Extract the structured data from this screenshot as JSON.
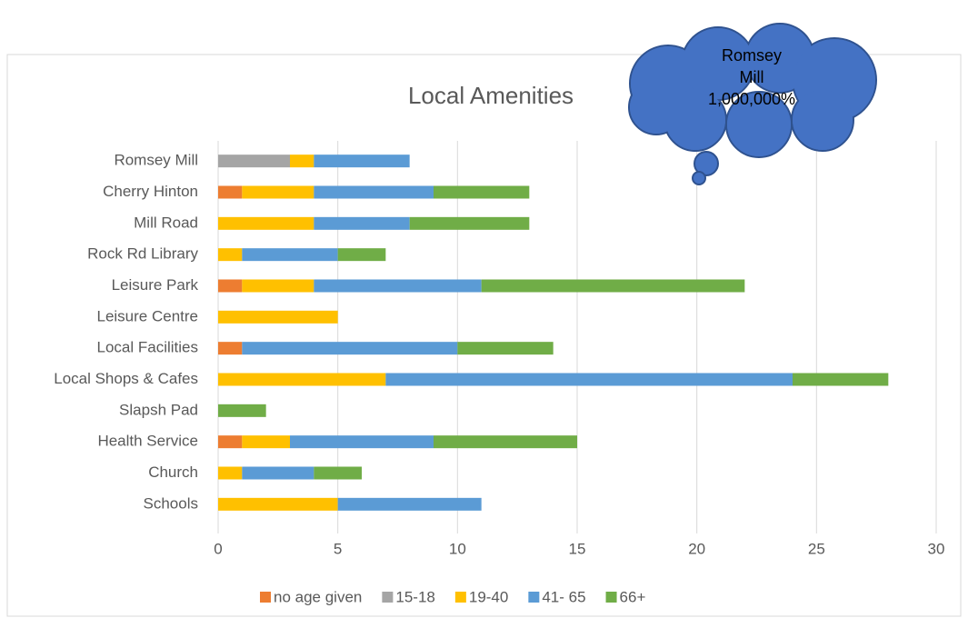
{
  "chart_data": {
    "type": "stacked-bar-horizontal",
    "title": "Local Amenities",
    "categories": [
      "Romsey Mill",
      "Cherry Hinton",
      "Mill Road",
      "Rock Rd Library",
      "Leisure Park",
      "Leisure Centre",
      "Local Facilities",
      "Local Shops & Cafes",
      "Slapsh Pad",
      "Health Service",
      "Church",
      "Schools"
    ],
    "series": [
      {
        "name": "no age given",
        "color": "#ED7D31",
        "values": [
          0,
          1,
          0,
          0,
          1,
          0,
          1,
          0,
          0,
          1,
          0,
          0
        ]
      },
      {
        "name": "15-18",
        "color": "#A5A5A5",
        "values": [
          3,
          0,
          0,
          0,
          0,
          0,
          0,
          0,
          0,
          0,
          0,
          0
        ]
      },
      {
        "name": "19-40",
        "color": "#FFC000",
        "values": [
          1,
          3,
          4,
          1,
          3,
          5,
          0,
          7,
          0,
          2,
          1,
          5
        ]
      },
      {
        "name": "41- 65",
        "color": "#5B9BD5",
        "values": [
          4,
          5,
          4,
          4,
          7,
          0,
          9,
          17,
          0,
          6,
          3,
          6
        ]
      },
      {
        "name": "66+",
        "color": "#70AD47",
        "values": [
          0,
          4,
          5,
          2,
          11,
          0,
          4,
          4,
          2,
          6,
          2,
          0
        ]
      }
    ],
    "xlim": [
      0,
      30
    ],
    "xticks": [
      0,
      5,
      10,
      15,
      20,
      25,
      30
    ],
    "grid": true,
    "legend": "bottom",
    "annotation": [
      "Romsey",
      "Mill",
      "1,000,000%"
    ]
  }
}
